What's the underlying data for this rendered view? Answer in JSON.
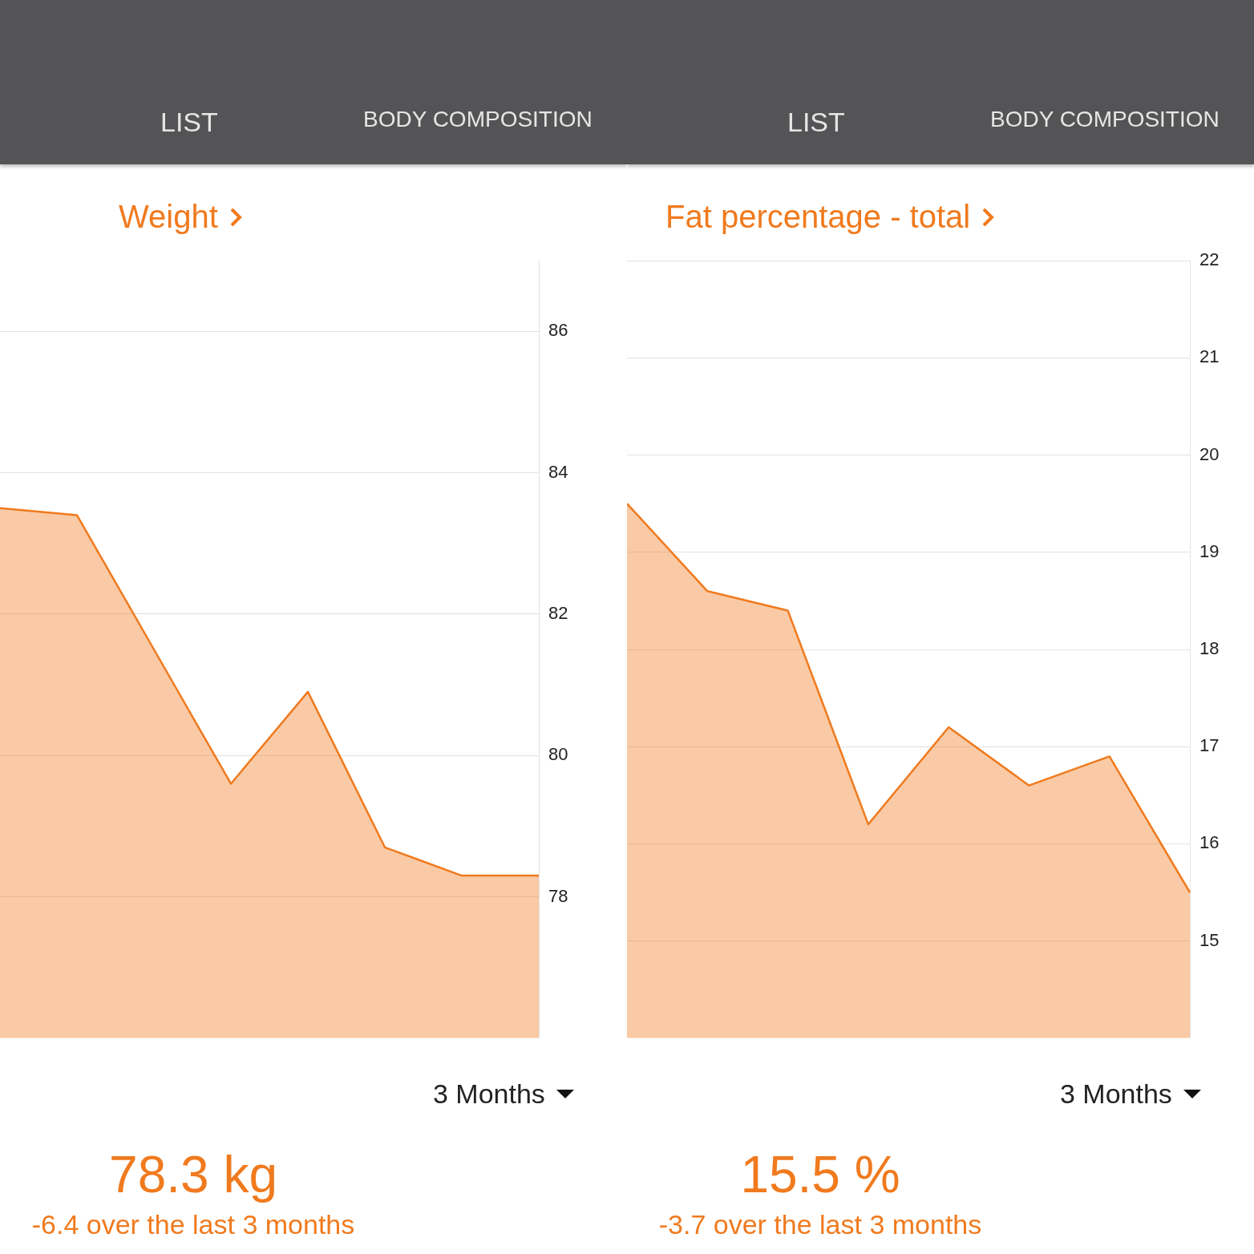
{
  "chart_data": [
    {
      "type": "area",
      "title": "Weight",
      "categories": [
        null,
        null,
        null,
        null,
        null,
        null,
        null,
        null
      ],
      "series": [
        {
          "color": "#f07a1e",
          "values": [
            83.5,
            83.4,
            81.5,
            79.6,
            80.9,
            78.7,
            78.3,
            78.3
          ]
        }
      ],
      "ylim": [
        76,
        87
      ],
      "yticks": [
        78,
        80,
        82,
        84,
        86
      ],
      "grid": "y",
      "tick_labels": "y",
      "legend": false,
      "annotations": [
        "LIST",
        "BODY COMPOSITION",
        "3 Months",
        "78.3 kg",
        "-6.4 over the last 3 months"
      ]
    },
    {
      "type": "area",
      "title": "Fat percentage - total",
      "categories": [
        null,
        null,
        null,
        null,
        null,
        null,
        null,
        null
      ],
      "series": [
        {
          "color": "#f07a1e",
          "values": [
            19.5,
            18.6,
            18.4,
            16.2,
            17.2,
            16.6,
            16.9,
            15.5
          ]
        }
      ],
      "ylim": [
        14,
        22
      ],
      "yticks": [
        15,
        16,
        17,
        18,
        19,
        20,
        21,
        22
      ],
      "grid": "y",
      "tick_labels": "y",
      "legend": false,
      "annotations": [
        "LIST",
        "BODY COMPOSITION",
        "3 Months",
        "15.5 %",
        "-3.7 over the last 3 months"
      ]
    }
  ]
}
